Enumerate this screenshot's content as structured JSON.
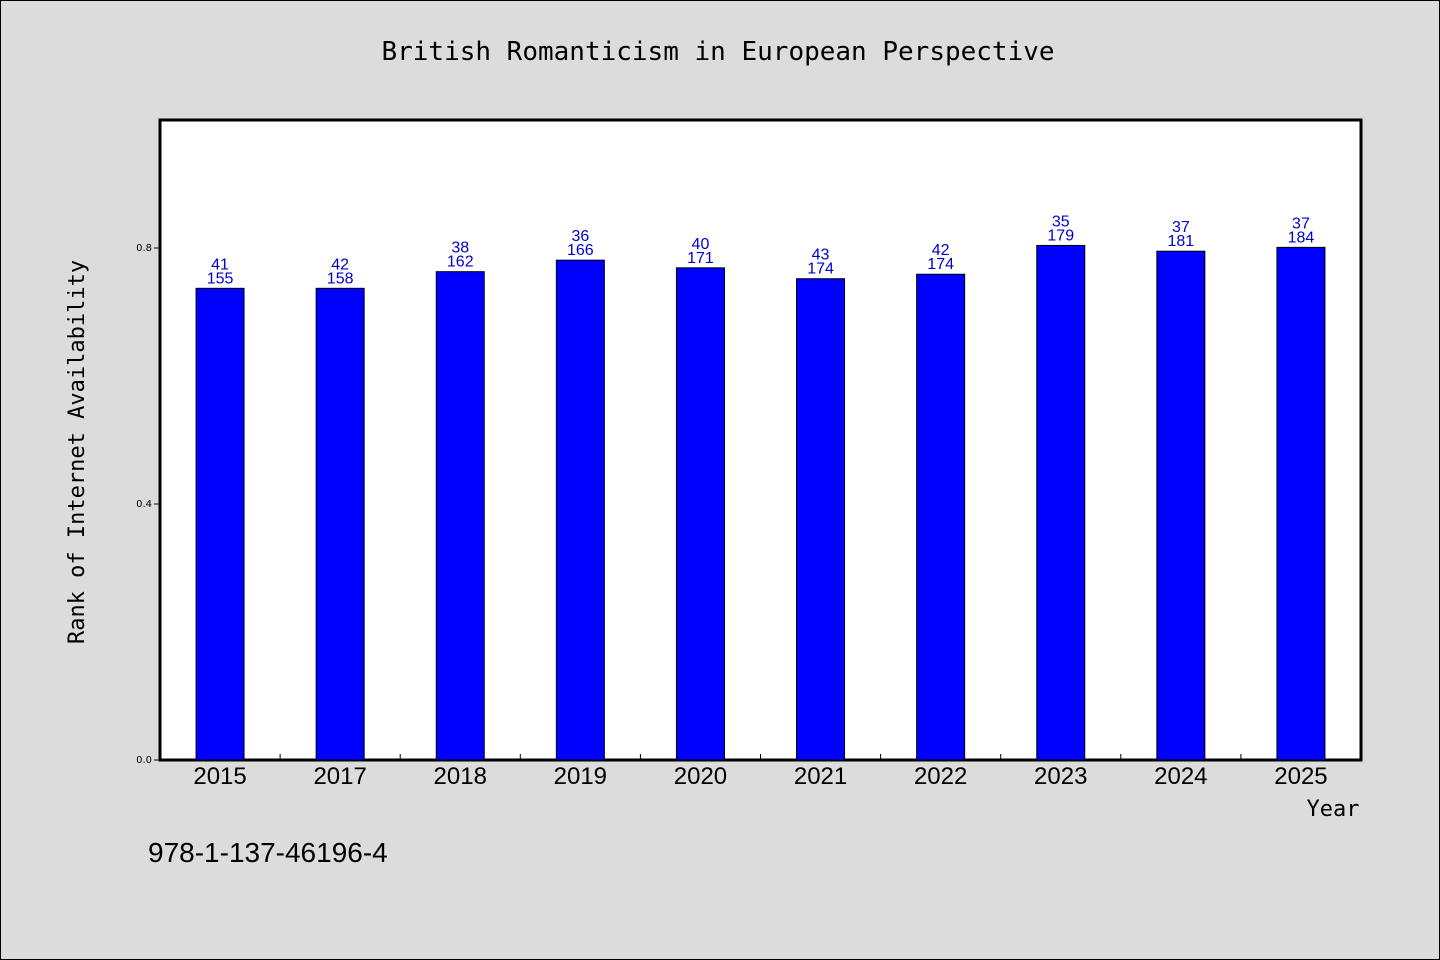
{
  "chart_data": {
    "type": "bar",
    "title": "British Romanticism in European Perspective",
    "xlabel": "Year",
    "ylabel": "Rank of Internet Availability",
    "categories": [
      "2015",
      "2017",
      "2018",
      "2019",
      "2020",
      "2021",
      "2022",
      "2023",
      "2024",
      "2025"
    ],
    "values": [
      0.737,
      0.737,
      0.763,
      0.781,
      0.769,
      0.752,
      0.759,
      0.804,
      0.795,
      0.801
    ],
    "labels_top": [
      "41",
      "42",
      "38",
      "36",
      "40",
      "43",
      "42",
      "35",
      "37",
      "37"
    ],
    "labels_bottom": [
      "155",
      "158",
      "162",
      "166",
      "171",
      "174",
      "174",
      "179",
      "181",
      "184"
    ],
    "ylim": [
      0,
      1.0
    ],
    "yticks": [
      "0.0",
      "0.4",
      "0.8"
    ],
    "ytick_values": [
      0.0,
      0.4,
      0.8
    ],
    "grid": false,
    "bar_color": "#0000ff",
    "label_color": "#0000cc",
    "background": "#dcdcdc",
    "plot_background": "#ffffff"
  },
  "footer": {
    "isbn": "978-1-137-46196-4"
  }
}
